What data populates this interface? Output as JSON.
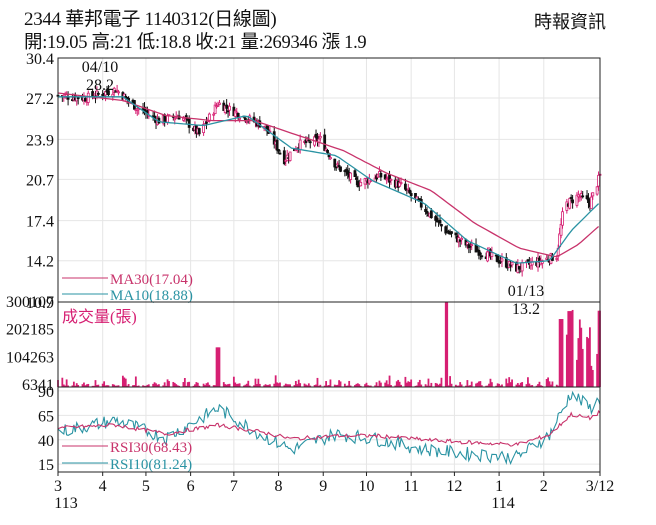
{
  "header": {
    "title": "2344  華邦電子 1140312(日線圖)",
    "quote": "開:19.05 高:21 低:18.8 收:21 量:269346 漲 1.9",
    "source": "時報資訊"
  },
  "colors": {
    "ma30": "#c8336b",
    "ma10": "#2a93a3",
    "volume": "#d61f72",
    "rsi30": "#c8336b",
    "rsi10": "#2a93a3",
    "candle_up": "#d61f72",
    "candle_down": "#111111",
    "grid": "#e6e6e6"
  },
  "chart_data": {
    "type": "candlestick",
    "x_range": [
      "2024-03-01",
      "2025-03-12"
    ],
    "x_ticks": [
      {
        "label": "3",
        "date": "2024-03-01",
        "sub": "113"
      },
      {
        "label": "4",
        "date": "2024-04-01"
      },
      {
        "label": "5",
        "date": "2024-05-01"
      },
      {
        "label": "6",
        "date": "2024-06-01"
      },
      {
        "label": "7",
        "date": "2024-07-01"
      },
      {
        "label": "8",
        "date": "2024-08-01"
      },
      {
        "label": "9",
        "date": "2024-09-01"
      },
      {
        "label": "10",
        "date": "2024-10-01"
      },
      {
        "label": "11",
        "date": "2024-11-01"
      },
      {
        "label": "12",
        "date": "2024-12-01"
      },
      {
        "label": "1",
        "date": "2025-01-01",
        "sub": "114"
      },
      {
        "label": "2",
        "date": "2025-02-01"
      },
      {
        "label": "3/12",
        "date": "2025-03-12"
      }
    ],
    "price": {
      "y_ticks": [
        "30.4",
        "27.2",
        "23.9",
        "20.7",
        "17.4",
        "14.2",
        "10.9"
      ],
      "ylim": [
        10.9,
        30.4
      ],
      "annotations": [
        {
          "date": "2024-04-10",
          "value": 28.2,
          "label_date": "04/10",
          "label_value": "28.2"
        },
        {
          "date": "2025-01-13",
          "value": 13.2,
          "label_date": "01/13",
          "label_value": "13.2"
        }
      ],
      "legend": [
        {
          "label": "MA30(17.04)",
          "color": "#c8336b"
        },
        {
          "label": "MA10(18.88)",
          "color": "#2a93a3"
        }
      ],
      "close_keypoints": [
        [
          "2024-03-01",
          27.4
        ],
        [
          "2024-03-20",
          27.2
        ],
        [
          "2024-04-10",
          27.9
        ],
        [
          "2024-04-25",
          26.4
        ],
        [
          "2024-05-10",
          25.4
        ],
        [
          "2024-05-25",
          25.8
        ],
        [
          "2024-06-07",
          24.3
        ],
        [
          "2024-06-20",
          26.8
        ],
        [
          "2024-06-28",
          26.3
        ],
        [
          "2024-07-10",
          25.6
        ],
        [
          "2024-07-22",
          25.0
        ],
        [
          "2024-08-05",
          22.3
        ],
        [
          "2024-08-15",
          23.5
        ],
        [
          "2024-08-30",
          23.9
        ],
        [
          "2024-09-10",
          21.8
        ],
        [
          "2024-09-25",
          20.4
        ],
        [
          "2024-10-10",
          21.0
        ],
        [
          "2024-10-25",
          20.2
        ],
        [
          "2024-11-10",
          18.4
        ],
        [
          "2024-11-25",
          16.6
        ],
        [
          "2024-12-10",
          15.4
        ],
        [
          "2024-12-25",
          14.6
        ],
        [
          "2025-01-13",
          13.6
        ],
        [
          "2025-01-25",
          14.0
        ],
        [
          "2025-02-10",
          14.6
        ],
        [
          "2025-02-15",
          18.6
        ],
        [
          "2025-02-25",
          19.4
        ],
        [
          "2025-03-05",
          18.8
        ],
        [
          "2025-03-12",
          21.0
        ]
      ],
      "ma30_keypoints": [
        [
          "2024-03-01",
          27.6
        ],
        [
          "2024-04-15",
          27.0
        ],
        [
          "2024-05-15",
          25.8
        ],
        [
          "2024-06-15",
          25.4
        ],
        [
          "2024-07-15",
          25.4
        ],
        [
          "2024-08-15",
          24.2
        ],
        [
          "2024-09-15",
          23.0
        ],
        [
          "2024-10-15",
          21.2
        ],
        [
          "2024-11-15",
          19.8
        ],
        [
          "2024-12-15",
          17.2
        ],
        [
          "2025-01-15",
          15.2
        ],
        [
          "2025-02-10",
          14.5
        ],
        [
          "2025-02-25",
          15.5
        ],
        [
          "2025-03-12",
          17.04
        ]
      ],
      "ma10_keypoints": [
        [
          "2024-03-01",
          27.3
        ],
        [
          "2024-04-15",
          27.3
        ],
        [
          "2024-05-10",
          25.3
        ],
        [
          "2024-06-10",
          25.0
        ],
        [
          "2024-07-10",
          25.8
        ],
        [
          "2024-08-10",
          23.2
        ],
        [
          "2024-09-10",
          22.6
        ],
        [
          "2024-10-05",
          20.6
        ],
        [
          "2024-11-10",
          18.8
        ],
        [
          "2024-12-10",
          15.8
        ],
        [
          "2025-01-13",
          14.0
        ],
        [
          "2025-02-05",
          14.2
        ],
        [
          "2025-02-20",
          16.6
        ],
        [
          "2025-03-12",
          18.88
        ]
      ]
    },
    "volume": {
      "title": "成交量(張)",
      "y_ticks": [
        "300107",
        "202185",
        "104263",
        "6341"
      ],
      "ylim": [
        6341,
        300107
      ],
      "spikes": [
        {
          "date": "2024-06-20",
          "value": 140000
        },
        {
          "date": "2024-11-25",
          "value": 300107
        },
        {
          "date": "2025-02-13",
          "value": 240000
        },
        {
          "date": "2025-02-19",
          "value": 268000
        },
        {
          "date": "2025-02-21",
          "value": 272000
        },
        {
          "date": "2025-03-12",
          "value": 269346
        }
      ]
    },
    "rsi": {
      "y_ticks": [
        "90",
        "65",
        "40",
        "15"
      ],
      "ylim": [
        15,
        90
      ],
      "legend": [
        {
          "label": "RSI30(68.43)",
          "color": "#c8336b"
        },
        {
          "label": "RSI10(81.24)",
          "color": "#2a93a3"
        }
      ],
      "rsi30_keypoints": [
        [
          "2024-03-01",
          52
        ],
        [
          "2024-04-10",
          55
        ],
        [
          "2024-05-15",
          46
        ],
        [
          "2024-06-20",
          55
        ],
        [
          "2024-07-20",
          48
        ],
        [
          "2024-08-10",
          41
        ],
        [
          "2024-09-10",
          44
        ],
        [
          "2024-10-10",
          44
        ],
        [
          "2024-11-10",
          40
        ],
        [
          "2024-12-15",
          37
        ],
        [
          "2025-01-13",
          35
        ],
        [
          "2025-02-05",
          45
        ],
        [
          "2025-02-20",
          66
        ],
        [
          "2025-03-05",
          62
        ],
        [
          "2025-03-12",
          68.43
        ]
      ],
      "rsi10_keypoints": [
        [
          "2024-03-01",
          48
        ],
        [
          "2024-04-10",
          60
        ],
        [
          "2024-05-15",
          42
        ],
        [
          "2024-06-20",
          72
        ],
        [
          "2024-07-20",
          45
        ],
        [
          "2024-08-10",
          30
        ],
        [
          "2024-09-10",
          46
        ],
        [
          "2024-10-10",
          40
        ],
        [
          "2024-11-10",
          30
        ],
        [
          "2024-12-15",
          25
        ],
        [
          "2025-01-13",
          22
        ],
        [
          "2025-02-05",
          45
        ],
        [
          "2025-02-20",
          88
        ],
        [
          "2025-03-05",
          72
        ],
        [
          "2025-03-12",
          81.24
        ]
      ]
    }
  }
}
